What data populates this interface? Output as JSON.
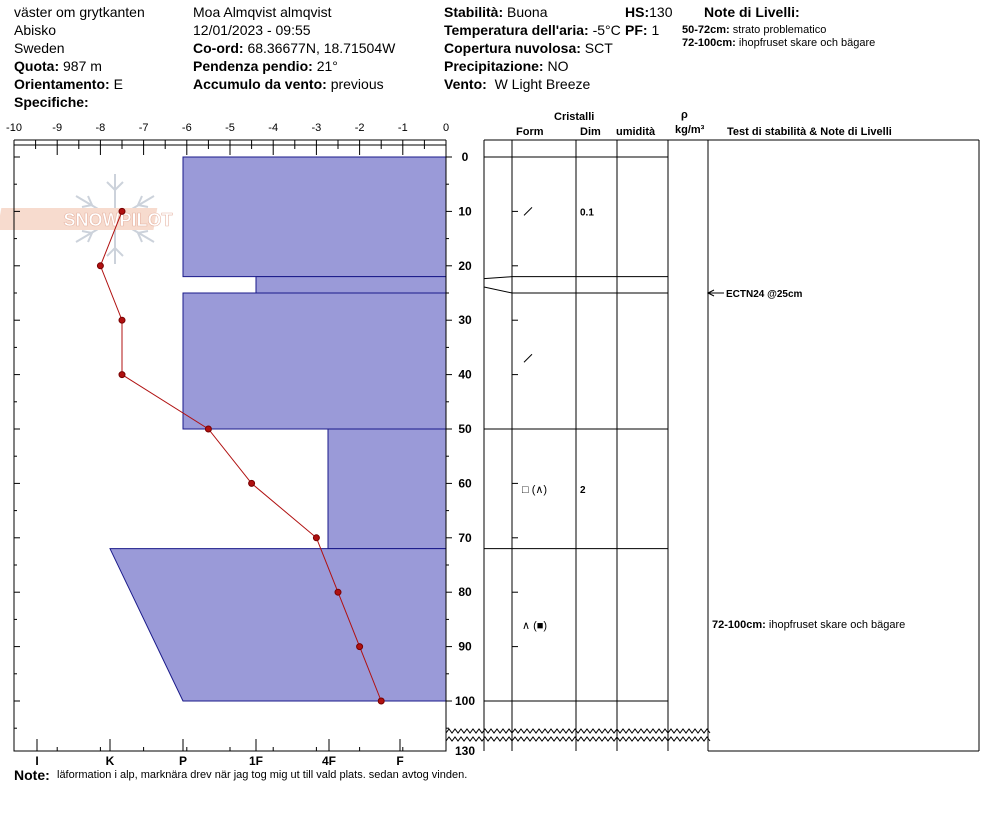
{
  "header": {
    "location": "väster om grytkanten",
    "region": "Abisko",
    "country": "Sweden",
    "elevation_label": "Quota:",
    "elevation_value": "987 m",
    "aspect_label": "Orientamento:",
    "aspect_value": "E",
    "specifics_label": "Specifiche:",
    "observer": "Moa Almqvist almqvist",
    "datetime": "12/01/2023 - 09:55",
    "coords_label": "Co-ord:",
    "coords_value": "68.36677N, 18.71504W",
    "slope_label": "Pendenza pendio:",
    "slope_value": "21°",
    "wind_loading_label": "Accumulo da vento:",
    "wind_loading_value": "previous",
    "stability_label": "Stabilità:",
    "stability_value": "Buona",
    "hs_label": "HS:",
    "hs_value": "130",
    "air_temp_label": "Temperatura dell'aria:",
    "air_temp_value": "-5°C",
    "pf_label": "PF:",
    "pf_value": "1",
    "cloud_label": "Copertura nuvolosa:",
    "cloud_value": "SCT",
    "precip_label": "Precipitazione:",
    "precip_value": "NO",
    "wind_label": "Vento:",
    "wind_value": "W Light Breeze",
    "layer_notes_title": "Note di Livelli:",
    "layer_notes": [
      {
        "range": "50-72cm:",
        "text": "strato problematico"
      },
      {
        "range": "72-100cm:",
        "text": "ihopfruset skare och bägare"
      }
    ]
  },
  "logo_text": "SNOWPILOT",
  "columns": {
    "crystals": "Cristalli",
    "form": "Form",
    "size": "Dim",
    "moisture": "umidità",
    "density_symbol": "ρ",
    "density_unit": "kg/m³",
    "stability_notes": "Test di stabilità & Note di Livelli"
  },
  "footer": {
    "note_label": "Note:",
    "note_text": "läformation i alp, marknära drev när jag tog mig ut till vald plats. sedan avtog vinden."
  },
  "chart_data": {
    "type": "snow_profile",
    "temp_axis": {
      "min": -10,
      "max": 0,
      "ticks": [
        "-10",
        "-9",
        "-8",
        "-7",
        "-6",
        "-5",
        "-4",
        "-3",
        "-2",
        "-1",
        "0"
      ]
    },
    "hardness_axis": {
      "labels": [
        "I",
        "K",
        "P",
        "1F",
        "4F",
        "F"
      ]
    },
    "depth_axis": {
      "min": 0,
      "max": 130,
      "ticks": [
        0,
        10,
        20,
        30,
        40,
        50,
        60,
        70,
        80,
        90,
        100,
        130
      ]
    },
    "temperature_profile": [
      {
        "depth": 10,
        "temp": -7.5
      },
      {
        "depth": 20,
        "temp": -8
      },
      {
        "depth": 30,
        "temp": -7.5
      },
      {
        "depth": 40,
        "temp": -7.5
      },
      {
        "depth": 50,
        "temp": -5.5
      },
      {
        "depth": 60,
        "temp": -4.5
      },
      {
        "depth": 70,
        "temp": -3
      },
      {
        "depth": 80,
        "temp": -2.5
      },
      {
        "depth": 90,
        "temp": -2
      },
      {
        "depth": 100,
        "temp": -1.5
      }
    ],
    "hardness_profile": [
      {
        "top": 0,
        "bottom": 22,
        "hardness_top": "P",
        "hardness_bottom": "P"
      },
      {
        "top": 22,
        "bottom": 25,
        "hardness_top": "1F",
        "hardness_bottom": "1F"
      },
      {
        "top": 25,
        "bottom": 50,
        "hardness_top": "P",
        "hardness_bottom": "P"
      },
      {
        "top": 50,
        "bottom": 72,
        "hardness_top": "F+",
        "hardness_bottom": "F+"
      },
      {
        "top": 72,
        "bottom": 100,
        "hardness_top": "K",
        "hardness_bottom": "P"
      }
    ],
    "layer_boundaries": [
      0,
      22,
      25,
      50,
      72,
      100
    ],
    "crystals": [
      {
        "depth": 10,
        "form": "/",
        "size": "0.1"
      },
      {
        "depth": 37,
        "form": "/",
        "size": ""
      },
      {
        "depth": 61,
        "form": "□ (∧)",
        "size": "2"
      },
      {
        "depth": 86,
        "form": "∧ (■)",
        "size": ""
      }
    ],
    "tests": [
      {
        "depth": 25,
        "label": "ECTN24 @25cm"
      }
    ],
    "layer_comments": [
      {
        "depth": 86,
        "range": "72-100cm:",
        "text": "ihopfruset skare och bägare"
      }
    ]
  }
}
